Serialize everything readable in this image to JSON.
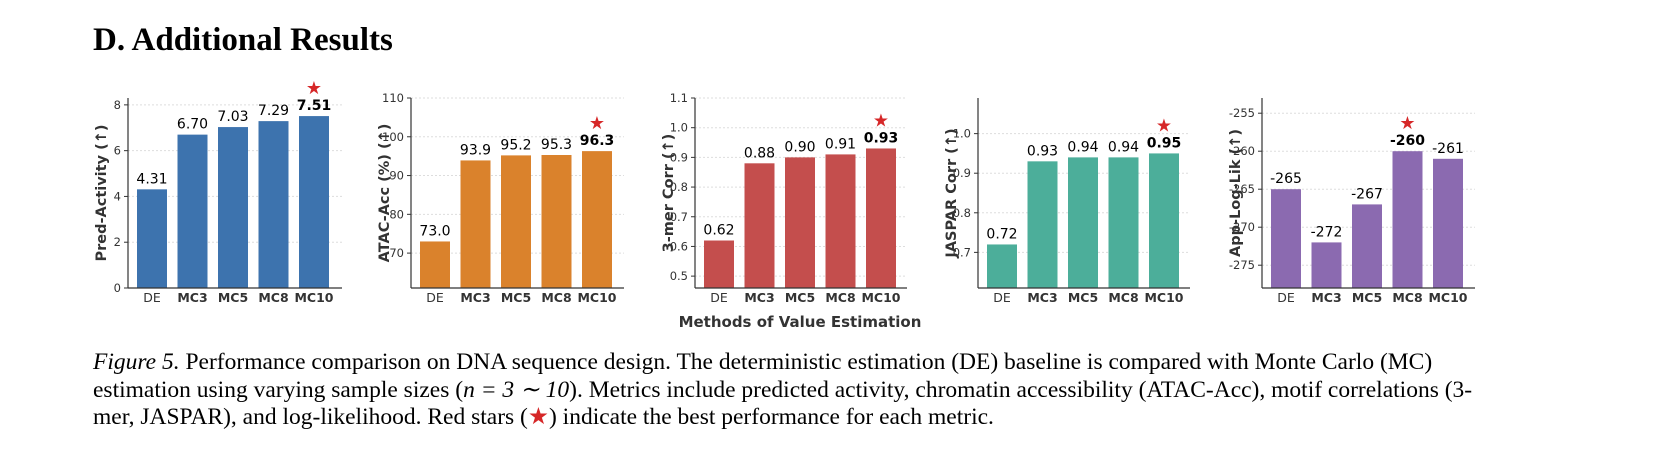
{
  "section_title": "D. Additional Results",
  "shared_xlabel": "Methods of Value Estimation",
  "caption": {
    "label": "Figure 5.",
    "text_1": " Performance comparison on DNA sequence design. The deterministic estimation (DE) baseline is compared with Monte Carlo (MC) estimation using varying sample sizes (",
    "math": "n = 3 ∼ 10",
    "text_2": "). Metrics include predicted activity, chromatin accessibility (ATAC-Acc), motif correlations (3-mer, JASPAR), and log-likelihood. Red stars (",
    "star": "★",
    "text_3": ") indicate the best performance for each metric."
  },
  "colors": {
    "star": "#d62728",
    "grid": "#dddddd",
    "axis": "#333333"
  },
  "chart_data": [
    {
      "type": "bar",
      "categories": [
        "DE",
        "MC3",
        "MC5",
        "MC8",
        "MC10"
      ],
      "values": [
        4.31,
        6.7,
        7.03,
        7.29,
        7.51
      ],
      "value_labels": [
        "4.31",
        "6.70",
        "7.03",
        "7.29",
        "7.51"
      ],
      "ylabel": "Pred-Activity (↑)",
      "ylim": [
        0,
        8.3
      ],
      "yticks": [
        0,
        2,
        4,
        6,
        8
      ],
      "color": "#3d73ae",
      "best_index": 4,
      "grid": true
    },
    {
      "type": "bar",
      "categories": [
        "DE",
        "MC3",
        "MC5",
        "MC8",
        "MC10"
      ],
      "values": [
        73.0,
        93.9,
        95.2,
        95.3,
        96.3
      ],
      "value_labels": [
        "73.0",
        "93.9",
        "95.2",
        "95.3",
        "96.3"
      ],
      "ylabel": "ATAC-Acc (%) (↑)",
      "ylim": [
        61,
        110
      ],
      "yticks": [
        70,
        80,
        90,
        100,
        110
      ],
      "color": "#da822c",
      "best_index": 4,
      "grid": true
    },
    {
      "type": "bar",
      "categories": [
        "DE",
        "MC3",
        "MC5",
        "MC8",
        "MC10"
      ],
      "values": [
        0.62,
        0.88,
        0.9,
        0.91,
        0.93
      ],
      "value_labels": [
        "0.62",
        "0.88",
        "0.90",
        "0.91",
        "0.93"
      ],
      "ylabel": "3-mer Corr (↑)",
      "ylim": [
        0.46,
        1.1
      ],
      "yticks": [
        0.5,
        0.6,
        0.7,
        0.8,
        0.9,
        1.0,
        1.1
      ],
      "color": "#c44e4d",
      "best_index": 4,
      "grid": true
    },
    {
      "type": "bar",
      "categories": [
        "DE",
        "MC3",
        "MC5",
        "MC8",
        "MC10"
      ],
      "values": [
        0.72,
        0.93,
        0.94,
        0.94,
        0.95
      ],
      "value_labels": [
        "0.72",
        "0.93",
        "0.94",
        "0.94",
        "0.95"
      ],
      "ylabel": "JASPAR Corr (↑)",
      "ylim": [
        0.61,
        1.09
      ],
      "yticks": [
        0.7,
        0.8,
        0.9,
        1.0
      ],
      "color": "#4cae9a",
      "best_index": 4,
      "grid": true
    },
    {
      "type": "bar",
      "categories": [
        "DE",
        "MC3",
        "MC5",
        "MC8",
        "MC10"
      ],
      "values": [
        -265,
        -272,
        -267,
        -260,
        -261
      ],
      "value_labels": [
        "-265",
        "-272",
        "-267",
        "-260",
        "-261"
      ],
      "ylabel": "App-Log-Lik (↑)",
      "ylim": [
        -278,
        -253
      ],
      "yticks": [
        -275,
        -270,
        -265,
        -260,
        -255
      ],
      "color": "#8b6ab0",
      "best_index": 3,
      "grid": true
    }
  ]
}
